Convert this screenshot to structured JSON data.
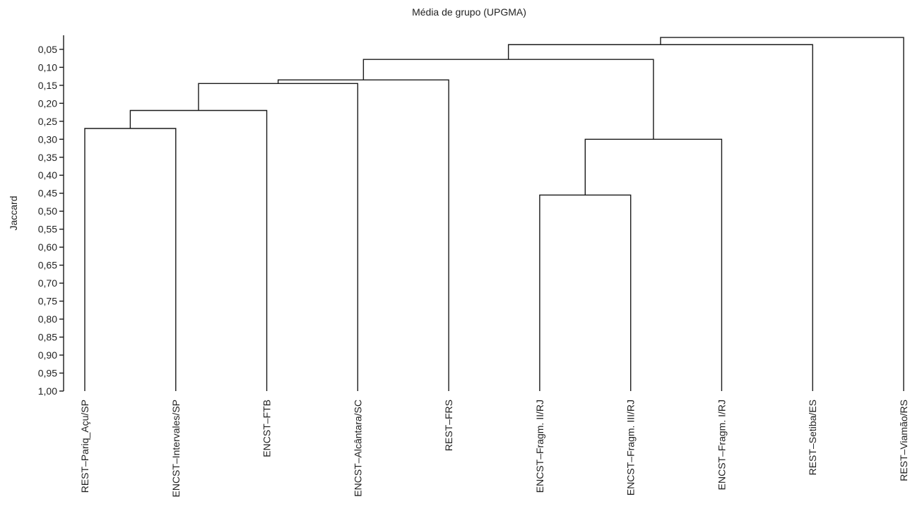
{
  "chart_data": {
    "type": "dendrogram",
    "title": "Média de grupo (UPGMA)",
    "ylabel": "Jaccard",
    "y_axis_inverted": true,
    "ylim": [
      0.0,
      1.0
    ],
    "yticks": [
      "0,05",
      "0,10",
      "0,15",
      "0,20",
      "0,25",
      "0,30",
      "0,35",
      "0,40",
      "0,45",
      "0,50",
      "0,55",
      "0,60",
      "0,65",
      "0,70",
      "0,75",
      "0,80",
      "0,85",
      "0,90",
      "0,95",
      "1,00"
    ],
    "leaves": [
      "REST–Pariq_Açu/SP",
      "ENCST–Intervales/SP",
      "ENCST–FTB",
      "ENCST–Alcântara/SC",
      "REST–FRS",
      "ENCST–Fragm. II/RJ",
      "ENCST–Fragm. III/RJ",
      "ENCST–Fragm. I/RJ",
      "REST–Setiba/ES",
      "REST–Viamão/RS"
    ],
    "merges": [
      {
        "left": 0,
        "right": 1,
        "similarity": 0.27
      },
      {
        "left": 5,
        "right": 6,
        "similarity": 0.455
      },
      {
        "left": 10,
        "right": 2,
        "similarity": 0.22
      },
      {
        "left": 11,
        "right": 7,
        "similarity": 0.3
      },
      {
        "left": 12,
        "right": 3,
        "similarity": 0.145
      },
      {
        "left": 14,
        "right": 4,
        "similarity": 0.135
      },
      {
        "left": 15,
        "right": 13,
        "similarity": 0.078
      },
      {
        "left": 16,
        "right": 8,
        "similarity": 0.037
      },
      {
        "left": 17,
        "right": 9,
        "similarity": 0.017
      }
    ],
    "grid": false,
    "legend": "none"
  }
}
